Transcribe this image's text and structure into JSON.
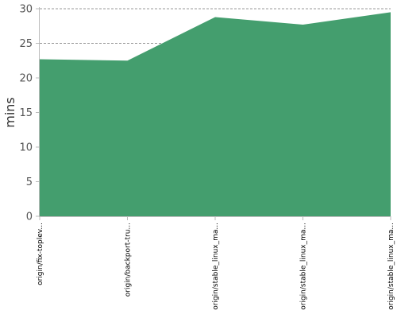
{
  "chart_data": {
    "type": "area",
    "title": "",
    "xlabel": "",
    "ylabel": "mins",
    "categories": [
      "origin/fix-toplev...",
      "origin/backport-tru...",
      "origin/stable_linux_ma...",
      "origin/stable_linux_ma...",
      "origin/stable_linux_ma..."
    ],
    "series": [
      {
        "values": [
          22.7,
          22.5,
          28.8,
          27.7,
          29.5
        ]
      }
    ],
    "ylim": [
      0,
      30
    ],
    "yticks": [
      0,
      5,
      10,
      15,
      20,
      25,
      30
    ],
    "grid": true,
    "legend": "none",
    "colors": {
      "fill": "#449e6e",
      "grid": "#777777",
      "axis": "#bbbbbb"
    }
  }
}
